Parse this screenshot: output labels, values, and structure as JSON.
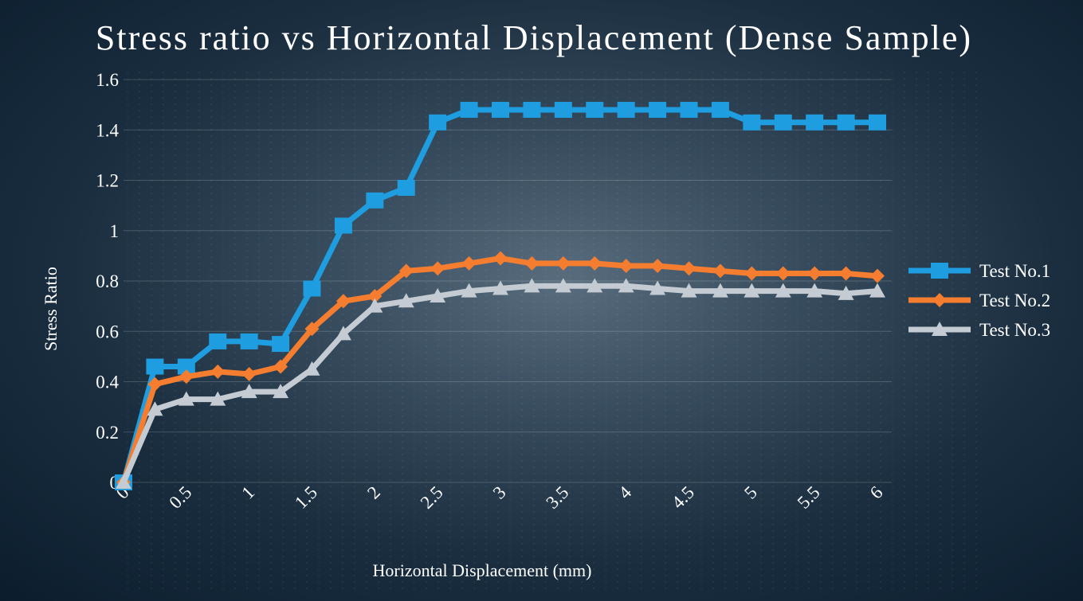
{
  "chart_data": {
    "type": "line",
    "title": "Stress ratio vs Horizontal Displacement (Dense Sample)",
    "xlabel": "Horizontal Displacement (mm)",
    "ylabel": "Stress Ratio",
    "xlim": [
      0,
      6
    ],
    "ylim": [
      0,
      1.6
    ],
    "xticks": [
      "0",
      "0.5",
      "1",
      "1.5",
      "2",
      "2.5",
      "3",
      "3.5",
      "4",
      "4.5",
      "5",
      "5.5",
      "6"
    ],
    "xtick_values": [
      0,
      0.5,
      1,
      1.5,
      2,
      2.5,
      3,
      3.5,
      4,
      4.5,
      5,
      5.5,
      6
    ],
    "yticks": [
      "0",
      "0.2",
      "0.4",
      "0.6",
      "0.8",
      "1",
      "1.2",
      "1.4",
      "1.6"
    ],
    "ytick_values": [
      0,
      0.2,
      0.4,
      0.6,
      0.8,
      1.0,
      1.2,
      1.4,
      1.6
    ],
    "grid": true,
    "legend_position": "right",
    "series": [
      {
        "name": "Test No.1",
        "color": "#1e9ee0",
        "marker": "square",
        "x": [
          0,
          0.25,
          0.5,
          0.75,
          1.0,
          1.25,
          1.5,
          1.75,
          2.0,
          2.25,
          2.5,
          2.75,
          3.0,
          3.25,
          3.5,
          3.75,
          4.0,
          4.25,
          4.5,
          4.75,
          5.0,
          5.25,
          5.5,
          5.75,
          6.0
        ],
        "y": [
          0,
          0.46,
          0.46,
          0.56,
          0.56,
          0.55,
          0.77,
          1.02,
          1.12,
          1.17,
          1.43,
          1.48,
          1.48,
          1.48,
          1.48,
          1.48,
          1.48,
          1.48,
          1.48,
          1.48,
          1.43,
          1.43,
          1.43,
          1.43,
          1.43
        ]
      },
      {
        "name": "Test No.2",
        "color": "#f47d30",
        "marker": "diamond",
        "x": [
          0,
          0.25,
          0.5,
          0.75,
          1.0,
          1.25,
          1.5,
          1.75,
          2.0,
          2.25,
          2.5,
          2.75,
          3.0,
          3.25,
          3.5,
          3.75,
          4.0,
          4.25,
          4.5,
          4.75,
          5.0,
          5.25,
          5.5,
          5.75,
          6.0
        ],
        "y": [
          0,
          0.39,
          0.42,
          0.44,
          0.43,
          0.46,
          0.61,
          0.72,
          0.74,
          0.84,
          0.85,
          0.87,
          0.89,
          0.87,
          0.87,
          0.87,
          0.86,
          0.86,
          0.85,
          0.84,
          0.83,
          0.83,
          0.83,
          0.83,
          0.82
        ]
      },
      {
        "name": "Test No.3",
        "color": "#c4cbd2",
        "marker": "triangle",
        "x": [
          0,
          0.25,
          0.5,
          0.75,
          1.0,
          1.25,
          1.5,
          1.75,
          2.0,
          2.25,
          2.5,
          2.75,
          3.0,
          3.25,
          3.5,
          3.75,
          4.0,
          4.25,
          4.5,
          4.75,
          5.0,
          5.25,
          5.5,
          5.75,
          6.0
        ],
        "y": [
          0,
          0.29,
          0.33,
          0.33,
          0.36,
          0.36,
          0.45,
          0.59,
          0.7,
          0.72,
          0.74,
          0.76,
          0.77,
          0.78,
          0.78,
          0.78,
          0.78,
          0.77,
          0.76,
          0.76,
          0.76,
          0.76,
          0.76,
          0.75,
          0.76
        ]
      }
    ]
  }
}
